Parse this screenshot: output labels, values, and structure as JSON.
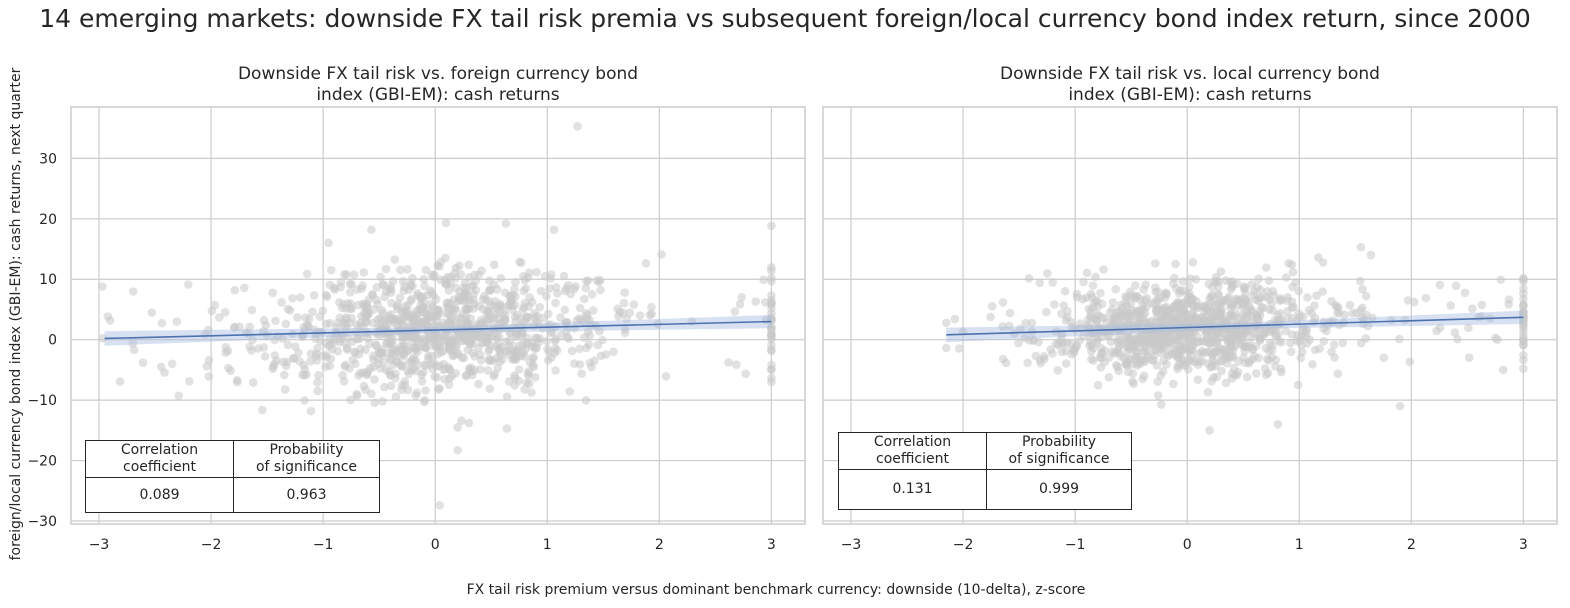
{
  "figure": {
    "title": "14 emerging markets: downside FX tail risk premia vs subsequent foreign/local currency bond index return, since 2000",
    "xlabel": "FX tail risk premium versus dominant benchmark currency: downside (10-delta), z-score",
    "ylabel": "foreign/local currency bond index (GBI-EM): cash returns, next quarter"
  },
  "colors": {
    "points": "#c8c8c8",
    "regression_line": "#4c72b0",
    "confidence_band": "#a8bde0",
    "grid": "#cccccc",
    "frame": "#cccccc"
  },
  "chart_data": [
    {
      "type": "scatter",
      "title_lines": [
        "Downside FX tail risk vs. foreign currency bond",
        "index (GBI-EM): cash returns"
      ],
      "xlim": [
        -3.25,
        3.3
      ],
      "ylim": [
        -30.5,
        38.5
      ],
      "xticks": [
        -3,
        -2,
        -1,
        0,
        1,
        2,
        3
      ],
      "yticks": [
        -30,
        -20,
        -10,
        0,
        10,
        20,
        30
      ],
      "grid": true,
      "regression": {
        "x": [
          -2.95,
          3.0
        ],
        "y": [
          0.2,
          3.0
        ]
      },
      "point_cloud": {
        "n": 1100,
        "x_center": 0.0,
        "x_spread": 0.72,
        "y_spread": 4.8,
        "x_min": -2.97,
        "x_max": 3.0
      },
      "outliers": [
        {
          "x": -2.97,
          "y": 8.8
        },
        {
          "x": 1.27,
          "y": 35.3
        },
        {
          "x": 0.63,
          "y": 19.2
        },
        {
          "x": -0.57,
          "y": 18.2
        },
        {
          "x": 1.06,
          "y": 18.2
        },
        {
          "x": 0.04,
          "y": -27.4
        },
        {
          "x": 0.2,
          "y": -18.3
        },
        {
          "x": 0.2,
          "y": -14.5
        },
        {
          "x": 0.64,
          "y": -14.7
        },
        {
          "x": 2.02,
          "y": 14.1
        },
        {
          "x": 3.0,
          "y": 10.2
        },
        {
          "x": 2.93,
          "y": 9.9
        },
        {
          "x": 3.0,
          "y": -7.0
        },
        {
          "x": -1.45,
          "y": -4.8
        },
        {
          "x": -0.47,
          "y": -10.2
        }
      ],
      "stats": {
        "headers": [
          "Correlation\ncoefficient",
          "Probability\nof significance"
        ],
        "values": [
          "0.089",
          "0.963"
        ]
      }
    },
    {
      "type": "scatter",
      "title_lines": [
        "Downside FX tail risk vs. local currency bond",
        "index (GBI-EM): cash returns"
      ],
      "xlim": [
        -3.25,
        3.3
      ],
      "ylim": [
        -30.5,
        38.5
      ],
      "xticks": [
        -3,
        -2,
        -1,
        0,
        1,
        2,
        3
      ],
      "yticks": [
        -30,
        -20,
        -10,
        0,
        10,
        20,
        30
      ],
      "grid": true,
      "regression": {
        "x": [
          -2.15,
          3.0
        ],
        "y": [
          0.8,
          3.7
        ]
      },
      "point_cloud": {
        "n": 1100,
        "x_center": 0.0,
        "x_spread": 0.62,
        "y_spread": 3.6,
        "x_min": -2.15,
        "x_max": 3.0
      },
      "outliers": [
        {
          "x": -2.15,
          "y": 2.8
        },
        {
          "x": 1.97,
          "y": 6.5
        },
        {
          "x": 1.9,
          "y": -11.0
        },
        {
          "x": 0.2,
          "y": -15.0
        },
        {
          "x": 0.81,
          "y": -14.0
        },
        {
          "x": 1.55,
          "y": 15.3
        },
        {
          "x": 1.64,
          "y": 14.0
        },
        {
          "x": 1.17,
          "y": 13.6
        },
        {
          "x": 3.0,
          "y": 10.0
        },
        {
          "x": 3.0,
          "y": -4.8
        },
        {
          "x": 2.82,
          "y": -5.0
        },
        {
          "x": 0.99,
          "y": -7.5
        }
      ],
      "stats": {
        "headers": [
          "Correlation\ncoefficient",
          "Probability\nof significance"
        ],
        "values": [
          "0.131",
          "0.999"
        ]
      }
    }
  ]
}
